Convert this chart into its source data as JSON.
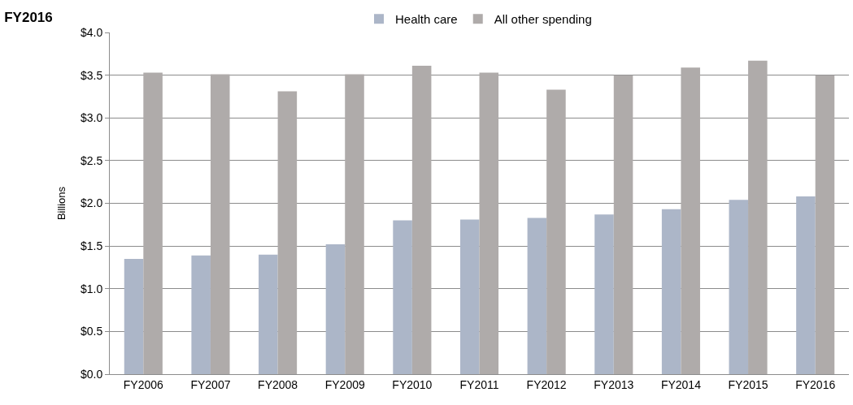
{
  "chart_data": {
    "type": "bar",
    "title": "FY2016",
    "ylabel": "Billions",
    "categories": [
      "FY2006",
      "FY2007",
      "FY2008",
      "FY2009",
      "FY2010",
      "FY2011",
      "FY2012",
      "FY2013",
      "FY2014",
      "FY2015",
      "FY2016"
    ],
    "series": [
      {
        "name": "Health care",
        "color": "#acb6c8",
        "values": [
          1.35,
          1.39,
          1.4,
          1.52,
          1.8,
          1.81,
          1.83,
          1.87,
          1.93,
          2.04,
          2.08
        ]
      },
      {
        "name": "All other spending",
        "color": "#afabaa",
        "values": [
          3.53,
          3.51,
          3.31,
          3.51,
          3.61,
          3.53,
          3.33,
          3.5,
          3.59,
          3.67,
          3.5
        ]
      }
    ],
    "ylim": [
      0,
      4
    ],
    "yticks": [
      {
        "value": 0,
        "label": "$0.0"
      },
      {
        "value": 0.5,
        "label": "$0.5"
      },
      {
        "value": 1,
        "label": "$1.0"
      },
      {
        "value": 1.5,
        "label": "$1.5"
      },
      {
        "value": 2,
        "label": "$2.0"
      },
      {
        "value": 2.5,
        "label": "$2.5"
      },
      {
        "value": 3,
        "label": "$3.0"
      },
      {
        "value": 3.5,
        "label": "$3.5"
      },
      {
        "value": 4,
        "label": "$4.0"
      }
    ],
    "grid": "y",
    "legend": "top"
  }
}
